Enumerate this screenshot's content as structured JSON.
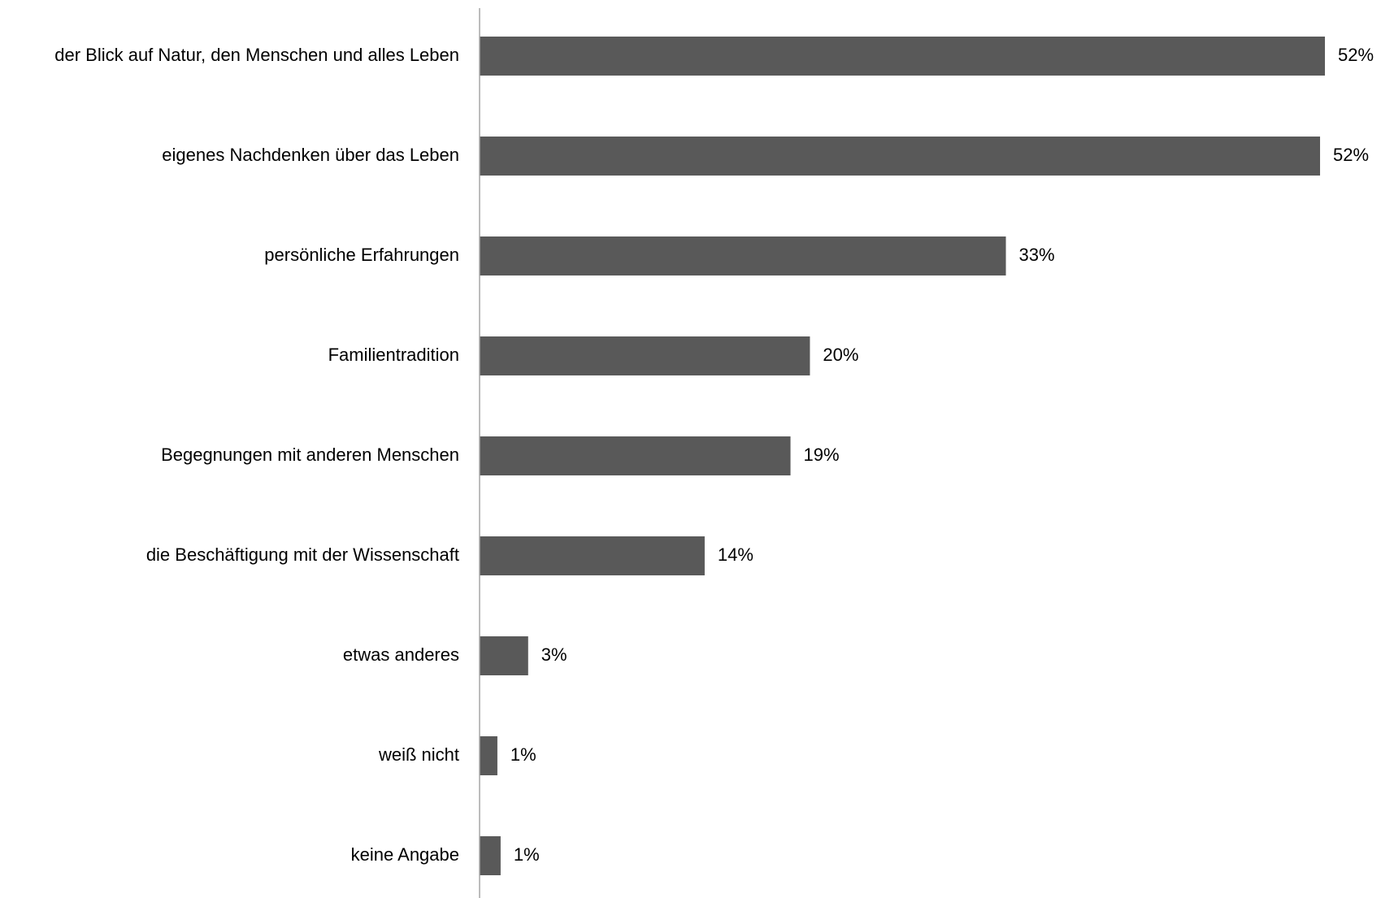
{
  "chart_data": {
    "type": "bar",
    "orientation": "horizontal",
    "title": "",
    "xlabel": "",
    "ylabel": "",
    "categories": [
      "der Blick auf Natur, den Menschen und alles Leben",
      "eigenes Nachdenken über das Leben",
      "persönliche Erfahrungen",
      "Familientradition",
      "Begegnungen mit anderen Menschen",
      "die Beschäftigung mit der Wissenschaft",
      "etwas anderes",
      "weiß nicht",
      "keine Angabe"
    ],
    "values": [
      52.2,
      51.9,
      32.5,
      20.4,
      19.2,
      13.9,
      3.0,
      1.1,
      1.3
    ],
    "value_labels": [
      "52%",
      "52%",
      "33%",
      "20%",
      "19%",
      "14%",
      "3%",
      "1%",
      "1%"
    ],
    "xlim": [
      0,
      52.2
    ],
    "grid": false,
    "legend": "none",
    "bar_color": "#595959",
    "axis_color": "#a6a6a6"
  }
}
